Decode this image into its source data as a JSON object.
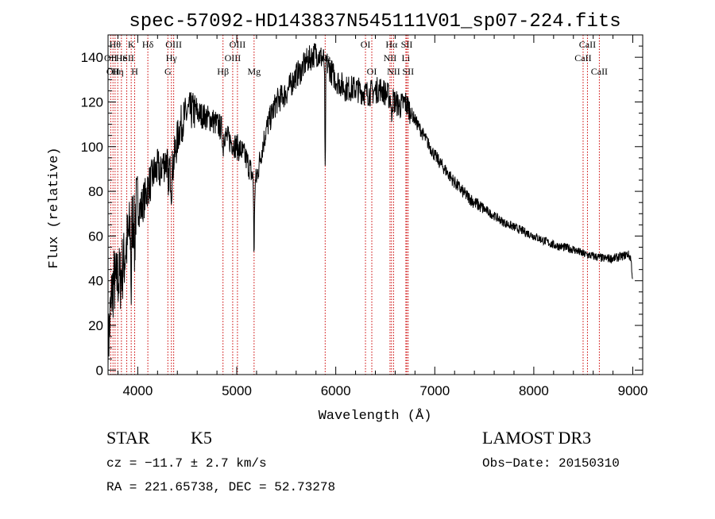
{
  "chart_data": {
    "type": "line",
    "title": "spec-57092-HD143837N545111V01_sp07-224.fits",
    "xlabel": "Wavelength (Å)",
    "ylabel": "Flux (relative)",
    "xlim": [
      3700,
      9100
    ],
    "ylim": [
      -2,
      150
    ],
    "x_ticks": [
      4000,
      5000,
      6000,
      7000,
      8000,
      9000
    ],
    "y_ticks": [
      0,
      20,
      40,
      60,
      80,
      100,
      120,
      140
    ],
    "line_color": "#000000",
    "marker_color": "#cc0000",
    "continuum": {
      "x": [
        3700,
        3720,
        3740,
        3760,
        3780,
        3800,
        3820,
        3840,
        3860,
        3880,
        3900,
        3920,
        3950,
        3980,
        4000,
        4030,
        4060,
        4080,
        4100,
        4130,
        4160,
        4200,
        4250,
        4300,
        4330,
        4350,
        4380,
        4420,
        4460,
        4500,
        4550,
        4600,
        4650,
        4700,
        4750,
        4800,
        4850,
        4900,
        4950,
        5000,
        5050,
        5100,
        5150,
        5180,
        5200,
        5250,
        5300,
        5350,
        5400,
        5450,
        5500,
        5550,
        5600,
        5650,
        5700,
        5750,
        5800,
        5850,
        5900,
        5950,
        6000,
        6050,
        6100,
        6150,
        6200,
        6250,
        6300,
        6350,
        6400,
        6450,
        6500,
        6550,
        6600,
        6650,
        6700,
        6750,
        6800,
        6850,
        6900,
        6950,
        7000,
        7100,
        7200,
        7300,
        7400,
        7500,
        7600,
        7700,
        7800,
        7900,
        8000,
        8100,
        8200,
        8300,
        8400,
        8500,
        8600,
        8700,
        8800,
        8900,
        8950,
        8980,
        9000
      ],
      "y": [
        10,
        22,
        35,
        40,
        38,
        42,
        40,
        45,
        48,
        55,
        58,
        62,
        68,
        72,
        74,
        72,
        76,
        78,
        82,
        84,
        88,
        90,
        92,
        94,
        88,
        90,
        98,
        108,
        112,
        115,
        116,
        115,
        114,
        113,
        112,
        110,
        108,
        104,
        102,
        100,
        98,
        94,
        88,
        82,
        86,
        98,
        108,
        114,
        120,
        122,
        124,
        128,
        132,
        134,
        138,
        140,
        142,
        140,
        138,
        134,
        130,
        128,
        126,
        126,
        126,
        125,
        124,
        124,
        125,
        126,
        124,
        122,
        120,
        118,
        120,
        116,
        112,
        108,
        104,
        100,
        96,
        90,
        84,
        79,
        75,
        72,
        69,
        66,
        64,
        62,
        60,
        58,
        56,
        55,
        54,
        52,
        51,
        50,
        50,
        51,
        52,
        50,
        40
      ]
    },
    "absorption_dips": [
      {
        "x": 3934,
        "depth": 30
      },
      {
        "x": 3969,
        "depth": 20
      },
      {
        "x": 4226,
        "depth": 10
      },
      {
        "x": 4308,
        "depth": 18
      },
      {
        "x": 4340,
        "depth": 8
      },
      {
        "x": 4861,
        "depth": 10
      },
      {
        "x": 5175,
        "depth": 32
      },
      {
        "x": 5893,
        "depth": 52
      },
      {
        "x": 6563,
        "depth": 10
      }
    ],
    "spectral_lines": [
      {
        "x": 3727,
        "label": "OII",
        "row": 1
      },
      {
        "x": 3750,
        "label": "OII",
        "row": 2
      },
      {
        "x": 3771,
        "label": "Hθ",
        "row": 0
      },
      {
        "x": 3798,
        "label": "Hη",
        "row": 2
      },
      {
        "x": 3835,
        "label": "He",
        "row": 1
      },
      {
        "x": 3889,
        "label": "ISII",
        "row": 1
      },
      {
        "x": 3934,
        "label": "K",
        "row": 0
      },
      {
        "x": 3969,
        "label": "H",
        "row": 2
      },
      {
        "x": 4102,
        "label": "Hδ",
        "row": 0
      },
      {
        "x": 4304,
        "label": "G",
        "row": 2
      },
      {
        "x": 4340,
        "label": "Hγ",
        "row": 1
      },
      {
        "x": 4363,
        "label": "OIII",
        "row": 0
      },
      {
        "x": 4861,
        "label": "Hβ",
        "row": 2
      },
      {
        "x": 4959,
        "label": "OIII",
        "row": 1
      },
      {
        "x": 5007,
        "label": "OIII",
        "row": 0
      },
      {
        "x": 5175,
        "label": "Mg",
        "row": 2
      },
      {
        "x": 5893,
        "label": "Na",
        "row": 1
      },
      {
        "x": 6300,
        "label": "OI",
        "row": 0
      },
      {
        "x": 6364,
        "label": "OI",
        "row": 2
      },
      {
        "x": 6548,
        "label": "NII",
        "row": 1
      },
      {
        "x": 6563,
        "label": "Hα",
        "row": 0
      },
      {
        "x": 6584,
        "label": "NII",
        "row": 2
      },
      {
        "x": 6708,
        "label": "Li",
        "row": 1
      },
      {
        "x": 6717,
        "label": "SII",
        "row": 0
      },
      {
        "x": 6731,
        "label": "SII",
        "row": 2
      },
      {
        "x": 8498,
        "label": "CaII",
        "row": 1
      },
      {
        "x": 8542,
        "label": "CaII",
        "row": 0
      },
      {
        "x": 8662,
        "label": "CaII",
        "row": 2
      }
    ]
  },
  "info": {
    "object_class": "STAR",
    "subclass": "K5",
    "survey": "LAMOST DR3",
    "redshift": "cz = −11.7 ± 2.7 km/s",
    "obs_date": "Obs−Date: 20150310",
    "coords": "RA = 221.65738, DEC =  52.73278"
  }
}
